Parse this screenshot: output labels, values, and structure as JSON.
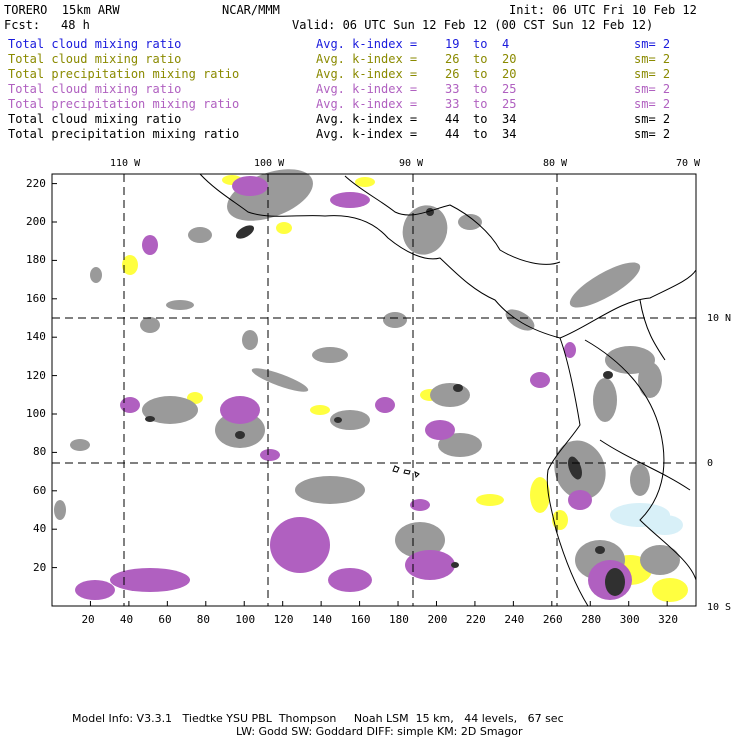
{
  "header": {
    "model": "TORERO  15km ARW",
    "org": "NCAR/MMM",
    "init": "Init: 06 UTC Fri 10 Feb 12",
    "fcst_label": "Fcst:",
    "fcst_value": "48 h",
    "valid": "Valid: 06 UTC Sun 12 Feb 12 (00 CST Sun 12 Feb 12)"
  },
  "legend_rows": [
    {
      "field": "Total cloud mixing ratio",
      "avg": "Avg. k-index =",
      "from": "19",
      "to_word": "to",
      "to": "4",
      "sm": "sm= 2",
      "color": "#1a1adc"
    },
    {
      "field": "Total cloud mixing ratio",
      "avg": "Avg. k-index =",
      "from": "26",
      "to_word": "to",
      "to": "20",
      "sm": "sm= 2",
      "color": "#8a8a00"
    },
    {
      "field": "Total precipitation mixing ratio",
      "avg": "Avg. k-index =",
      "from": "26",
      "to_word": "to",
      "to": "20",
      "sm": "sm= 2",
      "color": "#8a8a00"
    },
    {
      "field": "Total cloud mixing ratio",
      "avg": "Avg. k-index =",
      "from": "33",
      "to_word": "to",
      "to": "25",
      "sm": "sm= 2",
      "color": "#b060c0"
    },
    {
      "field": "Total precipitation mixing ratio",
      "avg": "Avg. k-index =",
      "from": "33",
      "to_word": "to",
      "to": "25",
      "sm": "sm= 2",
      "color": "#b060c0"
    },
    {
      "field": "Total cloud mixing ratio",
      "avg": "Avg. k-index =",
      "from": "44",
      "to_word": "to",
      "to": "34",
      "sm": "sm= 2",
      "color": "#000000"
    },
    {
      "field": "Total precipitation mixing ratio",
      "avg": "Avg. k-index =",
      "from": "44",
      "to_word": "to",
      "to": "34",
      "sm": "sm= 2",
      "color": "#000000"
    }
  ],
  "map": {
    "x_ticks": [
      "20",
      "40",
      "60",
      "80",
      "100",
      "120",
      "140",
      "160",
      "180",
      "200",
      "220",
      "240",
      "260",
      "280",
      "300",
      "320"
    ],
    "y_ticks": [
      "20",
      "40",
      "60",
      "80",
      "100",
      "120",
      "140",
      "160",
      "180",
      "200",
      "220"
    ],
    "lon_labels": [
      "110 W",
      "100 W",
      "90 W",
      "80 W",
      "70 W"
    ],
    "lat_labels": [
      "10 N",
      "0",
      "10 S"
    ]
  },
  "footer": {
    "line1": "Model Info: V3.3.1   Tiedtke YSU PBL  Thompson     Noah LSM  15 km,   44 levels,   67 sec",
    "line2": "LW: Godd SW: Goddard DIFF: simple KM: 2D Smagor"
  },
  "colors": {
    "level_blue": "#1a1adc",
    "level_yellow": "#ffff40",
    "level_gray": "#9a9a9a",
    "level_purple": "#b060c0",
    "level_dark": "#303030",
    "land_shade": "#d8f0f8"
  }
}
